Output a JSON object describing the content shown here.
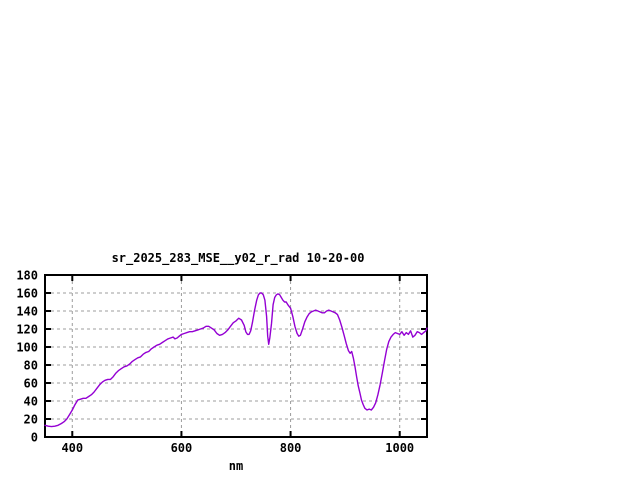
{
  "chart_data": {
    "type": "line",
    "title": "sr_2025_283_MSE__y02_r_rad 10-20-00",
    "xlabel": "nm",
    "ylabel": "",
    "xlim": [
      350,
      1050
    ],
    "ylim": [
      0,
      180
    ],
    "x_ticks": [
      400,
      600,
      800,
      1000
    ],
    "y_ticks": [
      0,
      20,
      40,
      60,
      80,
      100,
      120,
      140,
      160,
      180
    ],
    "grid": "dashed",
    "legend": "none",
    "series": [
      {
        "color": "#9400d3",
        "points": [
          [
            350,
            13
          ],
          [
            356,
            12
          ],
          [
            362,
            11.5
          ],
          [
            368,
            12
          ],
          [
            374,
            13
          ],
          [
            380,
            15
          ],
          [
            385,
            17
          ],
          [
            390,
            20
          ],
          [
            395,
            25
          ],
          [
            400,
            30
          ],
          [
            405,
            36
          ],
          [
            410,
            41
          ],
          [
            415,
            42
          ],
          [
            420,
            43
          ],
          [
            425,
            43
          ],
          [
            430,
            45
          ],
          [
            435,
            47
          ],
          [
            440,
            50
          ],
          [
            445,
            54
          ],
          [
            450,
            58
          ],
          [
            455,
            61
          ],
          [
            460,
            63
          ],
          [
            465,
            64
          ],
          [
            470,
            64
          ],
          [
            475,
            67
          ],
          [
            480,
            71
          ],
          [
            485,
            74
          ],
          [
            490,
            76
          ],
          [
            495,
            78
          ],
          [
            500,
            79
          ],
          [
            505,
            81
          ],
          [
            510,
            84
          ],
          [
            515,
            86
          ],
          [
            520,
            88
          ],
          [
            525,
            89
          ],
          [
            530,
            92
          ],
          [
            535,
            94
          ],
          [
            540,
            95
          ],
          [
            545,
            98
          ],
          [
            550,
            100
          ],
          [
            555,
            102
          ],
          [
            560,
            103
          ],
          [
            565,
            105
          ],
          [
            570,
            107
          ],
          [
            575,
            109
          ],
          [
            580,
            110
          ],
          [
            585,
            111
          ],
          [
            588,
            109
          ],
          [
            592,
            110
          ],
          [
            596,
            112
          ],
          [
            600,
            114
          ],
          [
            605,
            115
          ],
          [
            610,
            116
          ],
          [
            615,
            117
          ],
          [
            620,
            117
          ],
          [
            625,
            118
          ],
          [
            630,
            119
          ],
          [
            635,
            120
          ],
          [
            640,
            121
          ],
          [
            645,
            123
          ],
          [
            650,
            123
          ],
          [
            655,
            121
          ],
          [
            660,
            119
          ],
          [
            665,
            115
          ],
          [
            670,
            113
          ],
          [
            675,
            114
          ],
          [
            680,
            116
          ],
          [
            685,
            119
          ],
          [
            690,
            123
          ],
          [
            695,
            127
          ],
          [
            700,
            129
          ],
          [
            705,
            132
          ],
          [
            710,
            130
          ],
          [
            715,
            124
          ],
          [
            718,
            117
          ],
          [
            721,
            114
          ],
          [
            724,
            114
          ],
          [
            727,
            118
          ],
          [
            730,
            127
          ],
          [
            734,
            141
          ],
          [
            738,
            152
          ],
          [
            741,
            158
          ],
          [
            744,
            160
          ],
          [
            747,
            160
          ],
          [
            750,
            158
          ],
          [
            753,
            152
          ],
          [
            756,
            134
          ],
          [
            758,
            112
          ],
          [
            760,
            103
          ],
          [
            762,
            110
          ],
          [
            765,
            126
          ],
          [
            768,
            147
          ],
          [
            771,
            155
          ],
          [
            774,
            158
          ],
          [
            777,
            159
          ],
          [
            780,
            158
          ],
          [
            783,
            155
          ],
          [
            786,
            152
          ],
          [
            789,
            150
          ],
          [
            792,
            150
          ],
          [
            795,
            147
          ],
          [
            800,
            143
          ],
          [
            804,
            134
          ],
          [
            808,
            123
          ],
          [
            812,
            115
          ],
          [
            815,
            112
          ],
          [
            818,
            113
          ],
          [
            822,
            120
          ],
          [
            826,
            128
          ],
          [
            830,
            133
          ],
          [
            834,
            137
          ],
          [
            838,
            139
          ],
          [
            842,
            140
          ],
          [
            846,
            141
          ],
          [
            850,
            140
          ],
          [
            854,
            139
          ],
          [
            858,
            138
          ],
          [
            862,
            138
          ],
          [
            866,
            140
          ],
          [
            870,
            141
          ],
          [
            874,
            140
          ],
          [
            878,
            139
          ],
          [
            882,
            138
          ],
          [
            886,
            136
          ],
          [
            890,
            130
          ],
          [
            894,
            122
          ],
          [
            898,
            113
          ],
          [
            902,
            104
          ],
          [
            906,
            96
          ],
          [
            909,
            93
          ],
          [
            912,
            95
          ],
          [
            915,
            88
          ],
          [
            918,
            78
          ],
          [
            921,
            67
          ],
          [
            924,
            57
          ],
          [
            927,
            49
          ],
          [
            930,
            41
          ],
          [
            933,
            36
          ],
          [
            936,
            32
          ],
          [
            940,
            30
          ],
          [
            944,
            31
          ],
          [
            948,
            30
          ],
          [
            952,
            33
          ],
          [
            956,
            38
          ],
          [
            960,
            47
          ],
          [
            964,
            58
          ],
          [
            968,
            71
          ],
          [
            972,
            84
          ],
          [
            976,
            97
          ],
          [
            980,
            106
          ],
          [
            984,
            111
          ],
          [
            988,
            114
          ],
          [
            992,
            116
          ],
          [
            996,
            115
          ],
          [
            1000,
            114
          ],
          [
            1004,
            117
          ],
          [
            1008,
            113
          ],
          [
            1012,
            116
          ],
          [
            1016,
            114
          ],
          [
            1020,
            118
          ],
          [
            1024,
            111
          ],
          [
            1028,
            113
          ],
          [
            1032,
            117
          ],
          [
            1036,
            116
          ],
          [
            1040,
            114
          ],
          [
            1044,
            116
          ],
          [
            1048,
            118
          ],
          [
            1050,
            121
          ]
        ]
      }
    ]
  },
  "colors": {
    "background": "#ffffff",
    "curve": "#9400d3",
    "grid": "#9c9c9c",
    "axis": "#000000",
    "text": "#000000"
  }
}
